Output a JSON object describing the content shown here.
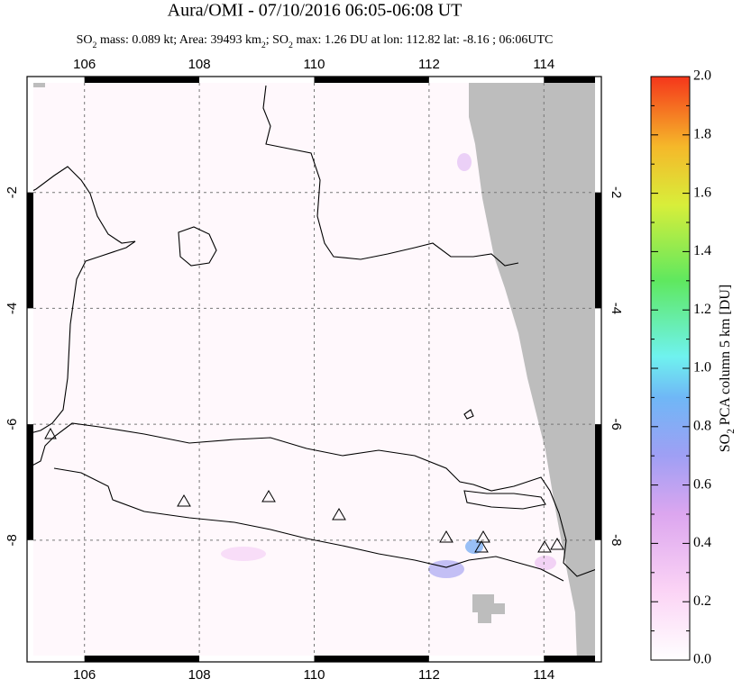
{
  "chart_data": {
    "type": "map",
    "title": "Aura/OMI - 07/10/2016 06:05-06:08 UT",
    "subtitle": [
      "SO",
      "2",
      " mass: 0.089 kt; Area: 39493 km",
      "2",
      "; SO",
      "2",
      " max: 1.26 DU at lon: 112.82 lat: -8.16 ; 06:06UTC"
    ],
    "xlim": [
      105,
      115
    ],
    "ylim": [
      -10.1,
      0
    ],
    "xticks": [
      106,
      108,
      110,
      112,
      114
    ],
    "yticks": [
      -2,
      -4,
      -6,
      -8
    ],
    "grid": true,
    "colorbar": {
      "label": [
        "SO",
        "2",
        " PCA column 5 km [DU]"
      ],
      "lim": [
        0,
        2
      ],
      "ticks": [
        {
          "value": 0,
          "label": "0.0"
        },
        0.2,
        0.4,
        0.6,
        0.8,
        {
          "value": 1,
          "label": "1.0"
        },
        1.2,
        1.4,
        1.6,
        1.8,
        {
          "value": 2,
          "label": "2.0"
        }
      ]
    }
  }
}
